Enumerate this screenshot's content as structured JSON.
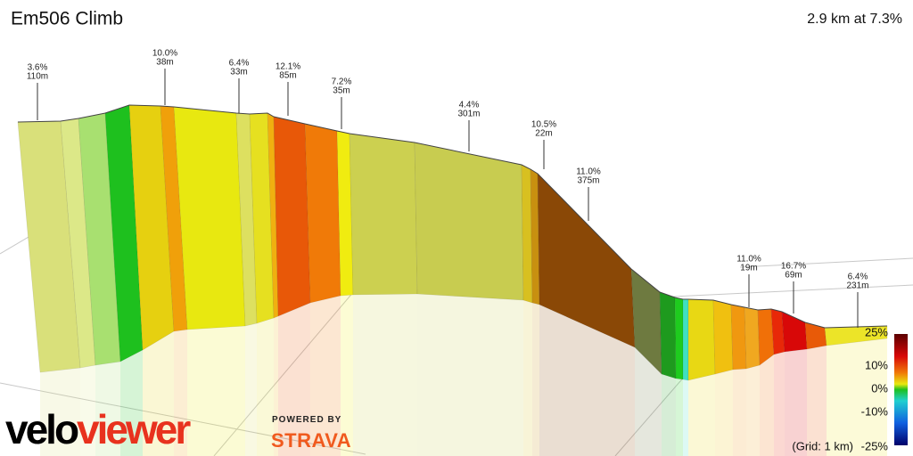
{
  "header": {
    "title": "Em506 Climb",
    "summary": "2.9 km at 7.3%"
  },
  "annotations": [
    {
      "grade": "3.6%",
      "length": "110m"
    },
    {
      "grade": "10.0%",
      "length": "38m"
    },
    {
      "grade": "6.4%",
      "length": "33m"
    },
    {
      "grade": "12.1%",
      "length": "85m"
    },
    {
      "grade": "7.2%",
      "length": "35m"
    },
    {
      "grade": "4.4%",
      "length": "301m"
    },
    {
      "grade": "10.5%",
      "length": "22m"
    },
    {
      "grade": "11.0%",
      "length": "375m"
    },
    {
      "grade": "11.0%",
      "length": "19m"
    },
    {
      "grade": "16.7%",
      "length": "69m"
    },
    {
      "grade": "6.4%",
      "length": "231m"
    }
  ],
  "legend": {
    "labels": [
      "25%",
      "10%",
      "0%",
      "-10%",
      "-25%"
    ],
    "grid_note": "(Grid: 1 km)"
  },
  "branding": {
    "logo": [
      "velo",
      "viewer"
    ],
    "powered_by": "POWERED BY",
    "partner": "STRAVA"
  }
}
